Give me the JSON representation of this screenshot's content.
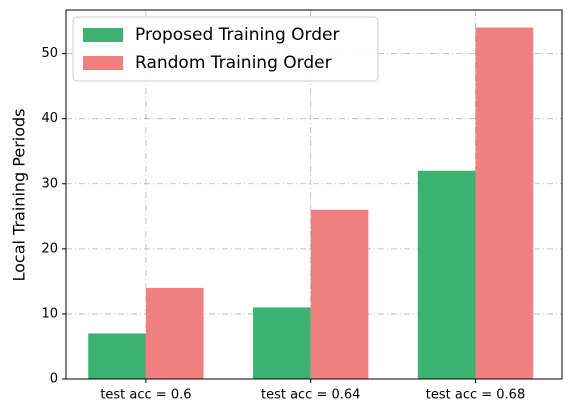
{
  "chart_data": {
    "type": "bar",
    "ylabel": "Local Training Periods",
    "categories": [
      "test acc = 0.6",
      "test acc = 0.64",
      "test acc = 0.68"
    ],
    "series": [
      {
        "name": "Proposed Training Order",
        "color": "#3cb371",
        "values": [
          7,
          11,
          32
        ]
      },
      {
        "name": "Random Training Order",
        "color": "#f08080",
        "values": [
          14,
          26,
          54
        ]
      }
    ],
    "ylim": [
      0,
      56.7
    ],
    "yticks": [
      0,
      10,
      20,
      30,
      40,
      50
    ],
    "grid": true,
    "legend": "upper left"
  }
}
